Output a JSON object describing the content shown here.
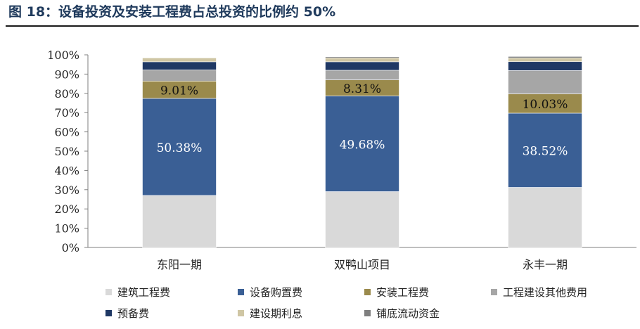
{
  "header": {
    "title": "图 18：设备投资及安装工程费占总投资的比例约 50%"
  },
  "chart_data": {
    "type": "bar",
    "stacked": true,
    "categories": [
      "东阳一期",
      "双鸭山项目",
      "永丰一期"
    ],
    "y_ticks": [
      "0%",
      "10%",
      "20%",
      "30%",
      "40%",
      "50%",
      "60%",
      "70%",
      "80%",
      "90%",
      "100%"
    ],
    "ylim": [
      0,
      100
    ],
    "xlabel": "",
    "ylabel": "",
    "grid": false,
    "legend_position": "bottom",
    "series": [
      {
        "name": "建筑工程费",
        "color": "#d9d9d9",
        "values": [
          27.0,
          29.0,
          31.2
        ],
        "label": [
          "",
          "",
          ""
        ]
      },
      {
        "name": "设备购置费",
        "color": "#3a5f95",
        "values": [
          50.38,
          49.68,
          38.52
        ],
        "label": [
          "50.38%",
          "49.68%",
          "38.52%"
        ]
      },
      {
        "name": "安装工程费",
        "color": "#9a8a4c",
        "values": [
          9.01,
          8.31,
          10.03
        ],
        "label": [
          "9.01%",
          "8.31%",
          "10.03%"
        ]
      },
      {
        "name": "工程建设其他费用",
        "color": "#a6a6a6",
        "values": [
          5.8,
          5.0,
          12.1
        ],
        "label": [
          "",
          "",
          ""
        ]
      },
      {
        "name": "预备费",
        "color": "#1f3864",
        "values": [
          4.2,
          4.4,
          4.6
        ],
        "label": [
          "",
          "",
          ""
        ]
      },
      {
        "name": "建设期利息",
        "color": "#cfc6a4",
        "values": [
          2.0,
          2.0,
          1.9
        ],
        "label": [
          "",
          "",
          ""
        ]
      },
      {
        "name": "铺底流动资金",
        "color": "#7f7f7f",
        "values": [
          0.0,
          0.6,
          0.8
        ],
        "label": [
          "",
          "",
          ""
        ]
      }
    ]
  }
}
